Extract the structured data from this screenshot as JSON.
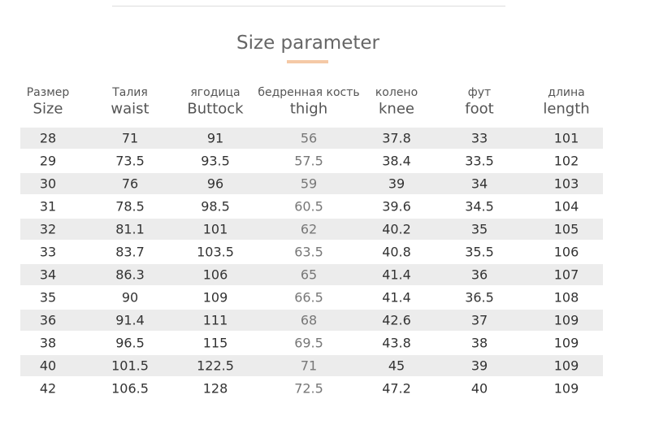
{
  "title": "Size parameter",
  "table": {
    "columns": [
      {
        "ru": "Размер",
        "en": "Size"
      },
      {
        "ru": "Талия",
        "en": "waist"
      },
      {
        "ru": "ягодица",
        "en": "Buttock"
      },
      {
        "ru": "бедренная кость",
        "en": "thigh"
      },
      {
        "ru": "колено",
        "en": "knee"
      },
      {
        "ru": "фут",
        "en": "foot"
      },
      {
        "ru": "длина",
        "en": "length"
      }
    ],
    "rows": [
      [
        "28",
        "71",
        "91",
        "56",
        "37.8",
        "33",
        "101"
      ],
      [
        "29",
        "73.5",
        "93.5",
        "57.5",
        "38.4",
        "33.5",
        "102"
      ],
      [
        "30",
        "76",
        "96",
        "59",
        "39",
        "34",
        "103"
      ],
      [
        "31",
        "78.5",
        "98.5",
        "60.5",
        "39.6",
        "34.5",
        "104"
      ],
      [
        "32",
        "81.1",
        "101",
        "62",
        "40.2",
        "35",
        "105"
      ],
      [
        "33",
        "83.7",
        "103.5",
        "63.5",
        "40.8",
        "35.5",
        "106"
      ],
      [
        "34",
        "86.3",
        "106",
        "65",
        "41.4",
        "36",
        "107"
      ],
      [
        "35",
        "90",
        "109",
        "66.5",
        "41.4",
        "36.5",
        "108"
      ],
      [
        "36",
        "91.4",
        "111",
        "68",
        "42.6",
        "37",
        "109"
      ],
      [
        "38",
        "96.5",
        "115",
        "69.5",
        "43.8",
        "38",
        "109"
      ],
      [
        "40",
        "101.5",
        "122.5",
        "71",
        "45",
        "39",
        "109"
      ],
      [
        "42",
        "106.5",
        "128",
        "72.5",
        "47.2",
        "40",
        "109"
      ]
    ]
  }
}
